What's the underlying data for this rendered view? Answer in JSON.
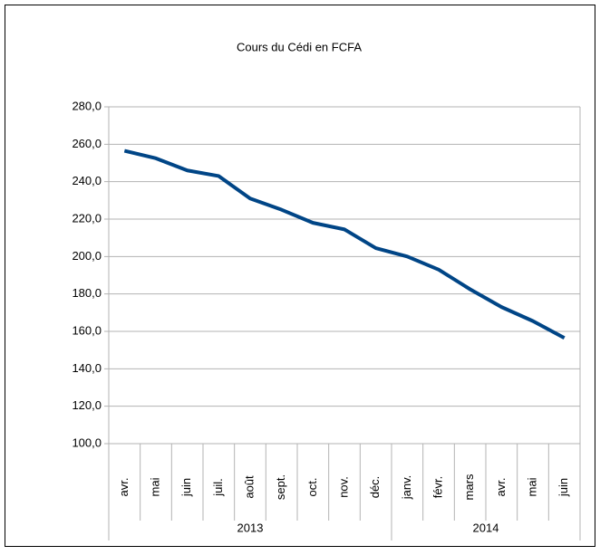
{
  "chart_data": {
    "type": "line",
    "title": "Cours du Cédi en FCFA",
    "categories": [
      "avr.",
      "mai",
      "juin",
      "juil.",
      "août",
      "sept.",
      "oct.",
      "nov.",
      "déc.",
      "janv.",
      "févr.",
      "mars",
      "avr.",
      "mai",
      "juin"
    ],
    "groups": [
      {
        "name": "2013",
        "span": 9
      },
      {
        "name": "2014",
        "span": 6
      }
    ],
    "series": [
      {
        "color": "#004586",
        "values": [
          256.5,
          252.5,
          246,
          243,
          231,
          225,
          218,
          214.5,
          204.5,
          200,
          193,
          182.5,
          173,
          165.5,
          156.5
        ]
      }
    ],
    "ylim": [
      100,
      280
    ],
    "yticks": [
      {
        "value": 100,
        "label": "100,0"
      },
      {
        "value": 120,
        "label": "120,0"
      },
      {
        "value": 140,
        "label": "140,0"
      },
      {
        "value": 160,
        "label": "160,0"
      },
      {
        "value": 180,
        "label": "180,0"
      },
      {
        "value": 200,
        "label": "200,0"
      },
      {
        "value": 220,
        "label": "220,0"
      },
      {
        "value": 240,
        "label": "240,0"
      },
      {
        "value": 260,
        "label": "260,0"
      },
      {
        "value": 280,
        "label": "280,0"
      }
    ],
    "grid": true
  }
}
